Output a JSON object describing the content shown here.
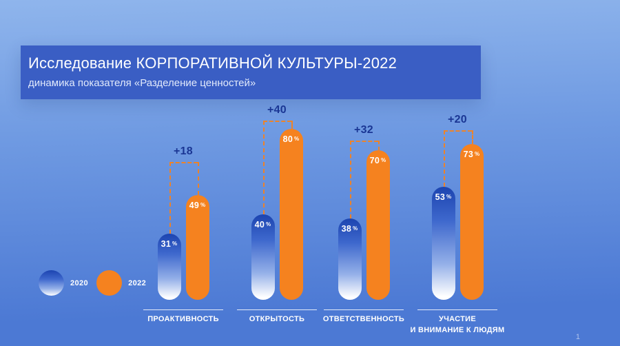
{
  "slide": {
    "page_number": "1"
  },
  "header": {
    "title": "Исследование КОРПОРАТИВНОЙ КУЛЬТУРЫ-2022",
    "subtitle": "динамика показателя «Разделение ценностей»"
  },
  "legend": {
    "items": [
      {
        "label": "2020",
        "swatch": "blue-gradient"
      },
      {
        "label": "2022",
        "swatch": "orange"
      }
    ]
  },
  "colors": {
    "orange": "#F5821F",
    "blue_bar_top": "#1C44B0",
    "delta_text": "#1A3694",
    "banner": "#3A5EC4",
    "bg_top": "#8FB5EC",
    "bg_mid": "#6F9AE2",
    "bg_bottom": "#4C79D4"
  },
  "chart_data": {
    "type": "bar",
    "unit": "%",
    "categories": [
      "ПРОАКТИВНОСТЬ",
      "ОТКРЫТОСТЬ",
      "ОТВЕТСТВЕННОСТЬ",
      "УЧАСТИЕ\nИ ВНИМАНИЕ К ЛЮДЯМ"
    ],
    "series": [
      {
        "name": "2020",
        "values": [
          31,
          40,
          38,
          53
        ]
      },
      {
        "name": "2022",
        "values": [
          49,
          80,
          70,
          73
        ]
      }
    ],
    "deltas": [
      "+18",
      "+40",
      "+32",
      "+20"
    ],
    "ylim": [
      0,
      100
    ],
    "value_labels": true,
    "legend_position": "bottom-left",
    "grid": false
  }
}
